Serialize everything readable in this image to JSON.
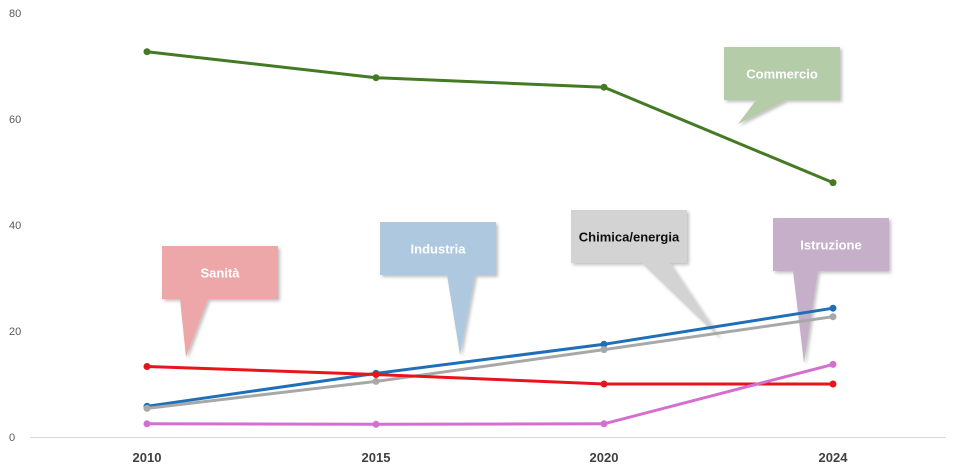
{
  "chart_data": {
    "type": "line",
    "x": [
      "2010",
      "2015",
      "2020",
      "2024"
    ],
    "ylim": [
      0,
      80
    ],
    "yticks": [
      "0",
      "20",
      "40",
      "60",
      "80"
    ],
    "grid": false,
    "series": [
      {
        "name": "Commercio",
        "color": "#447a23",
        "values": [
          72.7,
          67.8,
          66.0,
          48.0
        ]
      },
      {
        "name": "Industria",
        "color": "#1f6fb8",
        "values": [
          5.8,
          12.0,
          17.5,
          24.3
        ]
      },
      {
        "name": "Chimica/energia",
        "color": "#a8a8a8",
        "values": [
          5.4,
          10.5,
          16.5,
          22.7
        ]
      },
      {
        "name": "Sanità",
        "color": "#e8141c",
        "values": [
          13.3,
          11.8,
          10.0,
          10.0
        ]
      },
      {
        "name": "Istruzione",
        "color": "#d46fd0",
        "values": [
          2.5,
          2.4,
          2.5,
          13.7
        ]
      }
    ],
    "callouts": [
      {
        "label": "Commercio",
        "fill": "#b5cca8",
        "text_color": "#ffffff"
      },
      {
        "label": "Sanità",
        "fill": "#eda7a8",
        "text_color": "#ffffff"
      },
      {
        "label": "Industria",
        "fill": "#aec9df",
        "text_color": "#ffffff"
      },
      {
        "label": "Chimica/energia",
        "fill": "#d3d3d3",
        "text_color": "#111111"
      },
      {
        "label": "Istruzione",
        "fill": "#c6afc8",
        "text_color": "#ffffff"
      }
    ]
  }
}
